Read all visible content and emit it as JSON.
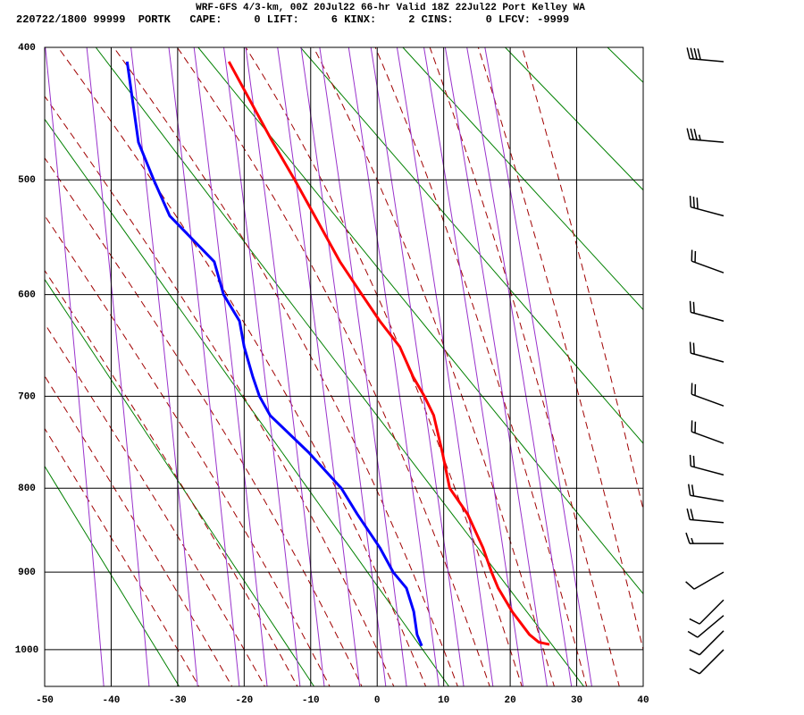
{
  "header": {
    "title": "WRF-GFS 4/3-km, 00Z 20Jul22 66-hr Valid 18Z 22Jul22 Port Kelley WA",
    "run": "220722/1800 99999",
    "station": "PORTK",
    "indices": [
      {
        "label": "CAPE:",
        "value": 0
      },
      {
        "label": "LIFT:",
        "value": 6
      },
      {
        "label": "KINX:",
        "value": 2
      },
      {
        "label": "CINS:",
        "value": 0
      },
      {
        "label": "LFCV:",
        "value": -9999
      }
    ]
  },
  "chart_data": {
    "type": "skewt",
    "xlim": [
      -50,
      40
    ],
    "xticks": [
      -50,
      -40,
      -30,
      -20,
      -10,
      0,
      10,
      20,
      30,
      40
    ],
    "ylim": [
      400,
      1050
    ],
    "yticks": [
      400,
      500,
      600,
      700,
      800,
      900,
      1000
    ],
    "grid": true,
    "series": [
      {
        "color": "#ff0000",
        "y": [
          410,
          470,
          500,
          530,
          570,
          600,
          625,
          650,
          680,
          700,
          720,
          760,
          800,
          830,
          870,
          900,
          920,
          950,
          980,
          990,
          993
        ],
        "values": [
          -22.3,
          -15.7,
          -12.4,
          -9.4,
          -5.6,
          -2.3,
          0.4,
          3.4,
          5.4,
          7.1,
          8.5,
          9.8,
          10.9,
          13.6,
          15.9,
          17.2,
          18.2,
          20.3,
          22.9,
          24.3,
          25.9
        ]
      },
      {
        "color": "#0000ff",
        "y": [
          410,
          470,
          500,
          530,
          570,
          600,
          625,
          650,
          680,
          700,
          720,
          760,
          800,
          830,
          870,
          900,
          920,
          950,
          980,
          995
        ],
        "values": [
          -37.6,
          -35.9,
          -33.6,
          -31.2,
          -24.5,
          -23.1,
          -20.7,
          -20.0,
          -18.7,
          -17.7,
          -16.1,
          -10.3,
          -5.4,
          -3.0,
          0.4,
          2.4,
          4.4,
          5.5,
          6.0,
          6.7
        ]
      }
    ],
    "wind": {
      "pressure": [
        410,
        470,
        530,
        580,
        625,
        665,
        710,
        750,
        785,
        815,
        840,
        865,
        900,
        935,
        955,
        975,
        1000
      ],
      "direction": [
        275,
        275,
        285,
        290,
        285,
        285,
        290,
        290,
        285,
        280,
        275,
        270,
        240,
        225,
        230,
        225,
        225
      ],
      "speed": [
        40,
        35,
        30,
        20,
        20,
        20,
        20,
        20,
        20,
        20,
        20,
        15,
        10,
        10,
        10,
        10,
        10
      ]
    }
  }
}
